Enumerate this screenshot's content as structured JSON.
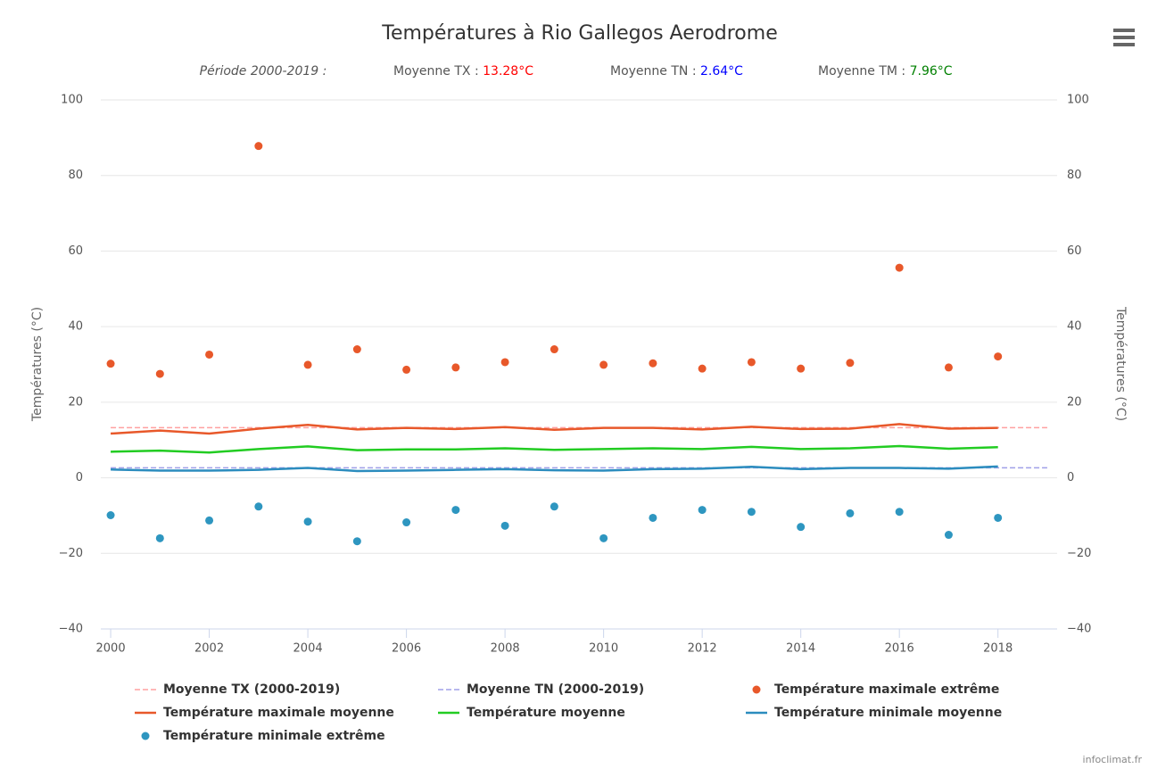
{
  "chart_data": {
    "type": "line",
    "title": "Températures à Rio Gallegos Aerodrome",
    "subtitle": {
      "period": "Période 2000-2019 :",
      "tx_label": "Moyenne TX : ",
      "tx_value": "13.28°C",
      "tn_label": "Moyenne TN : ",
      "tn_value": "2.64°C",
      "tm_label": "Moyenne TM : ",
      "tm_value": "7.96°C"
    },
    "y_label": "Températures (°C)",
    "y2_label": "Températures (°C)",
    "credits": "infoclimat.fr",
    "x": [
      2000,
      2001,
      2002,
      2003,
      2004,
      2005,
      2006,
      2007,
      2008,
      2009,
      2010,
      2011,
      2012,
      2013,
      2014,
      2015,
      2016,
      2017,
      2018
    ],
    "xlim": [
      1999.8,
      2019.2
    ],
    "xticks": [
      2000,
      2002,
      2004,
      2006,
      2008,
      2010,
      2012,
      2014,
      2016,
      2018
    ],
    "ylim": [
      -40,
      100
    ],
    "yticks": [
      {
        "value": -40,
        "label": "−40"
      },
      {
        "value": -20,
        "label": "−20"
      },
      0,
      20,
      40,
      60,
      80,
      100
    ],
    "y2lim": [
      -40,
      100
    ],
    "y2ticks": [
      {
        "value": -40,
        "label": "−40"
      },
      {
        "value": -20,
        "label": "−20"
      },
      0,
      20,
      40,
      60,
      80,
      100
    ],
    "grid": true,
    "series": [
      {
        "name": "Moyenne TX (2000-2019)",
        "type": "line",
        "dash": true,
        "color": "#ffa0a0",
        "x": [
          2000,
          2019
        ],
        "values": [
          13.28,
          13.28
        ]
      },
      {
        "name": "Moyenne TN (2000-2019)",
        "type": "line",
        "dash": true,
        "color": "#a0a0e8",
        "x": [
          2000,
          2019
        ],
        "values": [
          2.64,
          2.64
        ]
      },
      {
        "name": "Température maximale extrême",
        "type": "scatter",
        "color": "#e8582a",
        "values": [
          30.2,
          27.5,
          32.6,
          87.8,
          29.9,
          34,
          28.6,
          29.2,
          30.6,
          34,
          29.9,
          30.3,
          28.9,
          30.6,
          28.9,
          30.4,
          55.6,
          29.2,
          32.1
        ]
      },
      {
        "name": "Température maximale moyenne",
        "type": "line",
        "color": "#e8582a",
        "values": [
          11.7,
          12.5,
          11.7,
          13,
          14,
          12.8,
          13.2,
          12.9,
          13.4,
          12.7,
          13.2,
          13.2,
          12.8,
          13.5,
          12.9,
          13,
          14.2,
          13,
          13.2
        ]
      },
      {
        "name": "Température moyenne",
        "type": "line",
        "color": "#22cc22",
        "values": [
          6.9,
          7.2,
          6.7,
          7.6,
          8.3,
          7.3,
          7.5,
          7.5,
          7.8,
          7.4,
          7.6,
          7.8,
          7.6,
          8.2,
          7.6,
          7.8,
          8.4,
          7.7,
          8.1
        ]
      },
      {
        "name": "Température minimale moyenne",
        "type": "line",
        "color": "#2b8cbe",
        "values": [
          2.2,
          1.9,
          1.9,
          2.1,
          2.6,
          1.8,
          1.9,
          2.1,
          2.3,
          2.0,
          1.9,
          2.3,
          2.4,
          2.9,
          2.3,
          2.6,
          2.6,
          2.4,
          3.0
        ]
      },
      {
        "name": "Température minimale extrême",
        "type": "scatter",
        "color": "#2e96c0",
        "values": [
          -9.9,
          -16,
          -11.3,
          -7.6,
          -11.6,
          -16.8,
          -11.8,
          -8.5,
          -12.7,
          -7.6,
          -16,
          -10.6,
          -8.5,
          -9,
          -13,
          -9.4,
          -9,
          -15.1,
          -10.6
        ]
      }
    ]
  }
}
